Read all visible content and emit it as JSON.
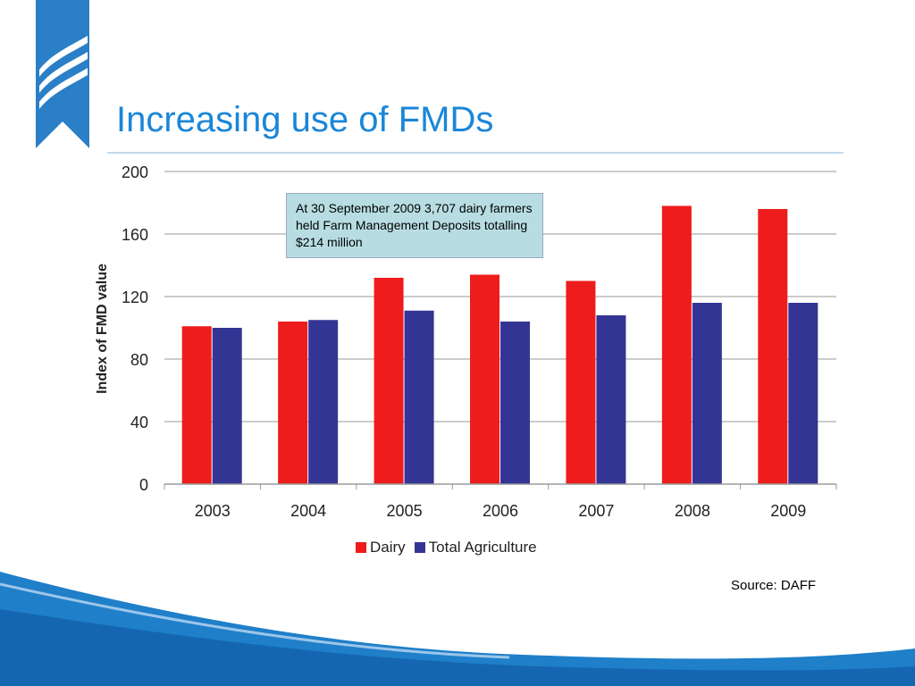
{
  "slide": {
    "title": "Increasing use of FMDs",
    "source": "Source: DAFF",
    "annotation": "At 30 September 2009 3,707 dairy farmers held Farm Management Deposits totalling $214 million"
  },
  "colors": {
    "title": "#1a86d8",
    "dairy": "#ee1c1c",
    "total_agriculture": "#343494",
    "annotation_bg": "#b7dde2",
    "brand_blue": "#1f7fc9"
  },
  "chart_data": {
    "type": "bar",
    "title": "",
    "xlabel": "",
    "ylabel": "Index of FMD value",
    "categories": [
      "2003",
      "2004",
      "2005",
      "2006",
      "2007",
      "2008",
      "2009"
    ],
    "series": [
      {
        "name": "Dairy",
        "color": "#ee1c1c",
        "values": [
          101,
          104,
          132,
          134,
          130,
          178,
          176
        ]
      },
      {
        "name": "Total Agriculture",
        "color": "#343494",
        "values": [
          100,
          105,
          111,
          104,
          108,
          116,
          116
        ]
      }
    ],
    "ylim": [
      0,
      200
    ],
    "yticks": [
      0,
      40,
      80,
      120,
      160,
      200
    ],
    "grid": true,
    "legend": "bottom"
  }
}
